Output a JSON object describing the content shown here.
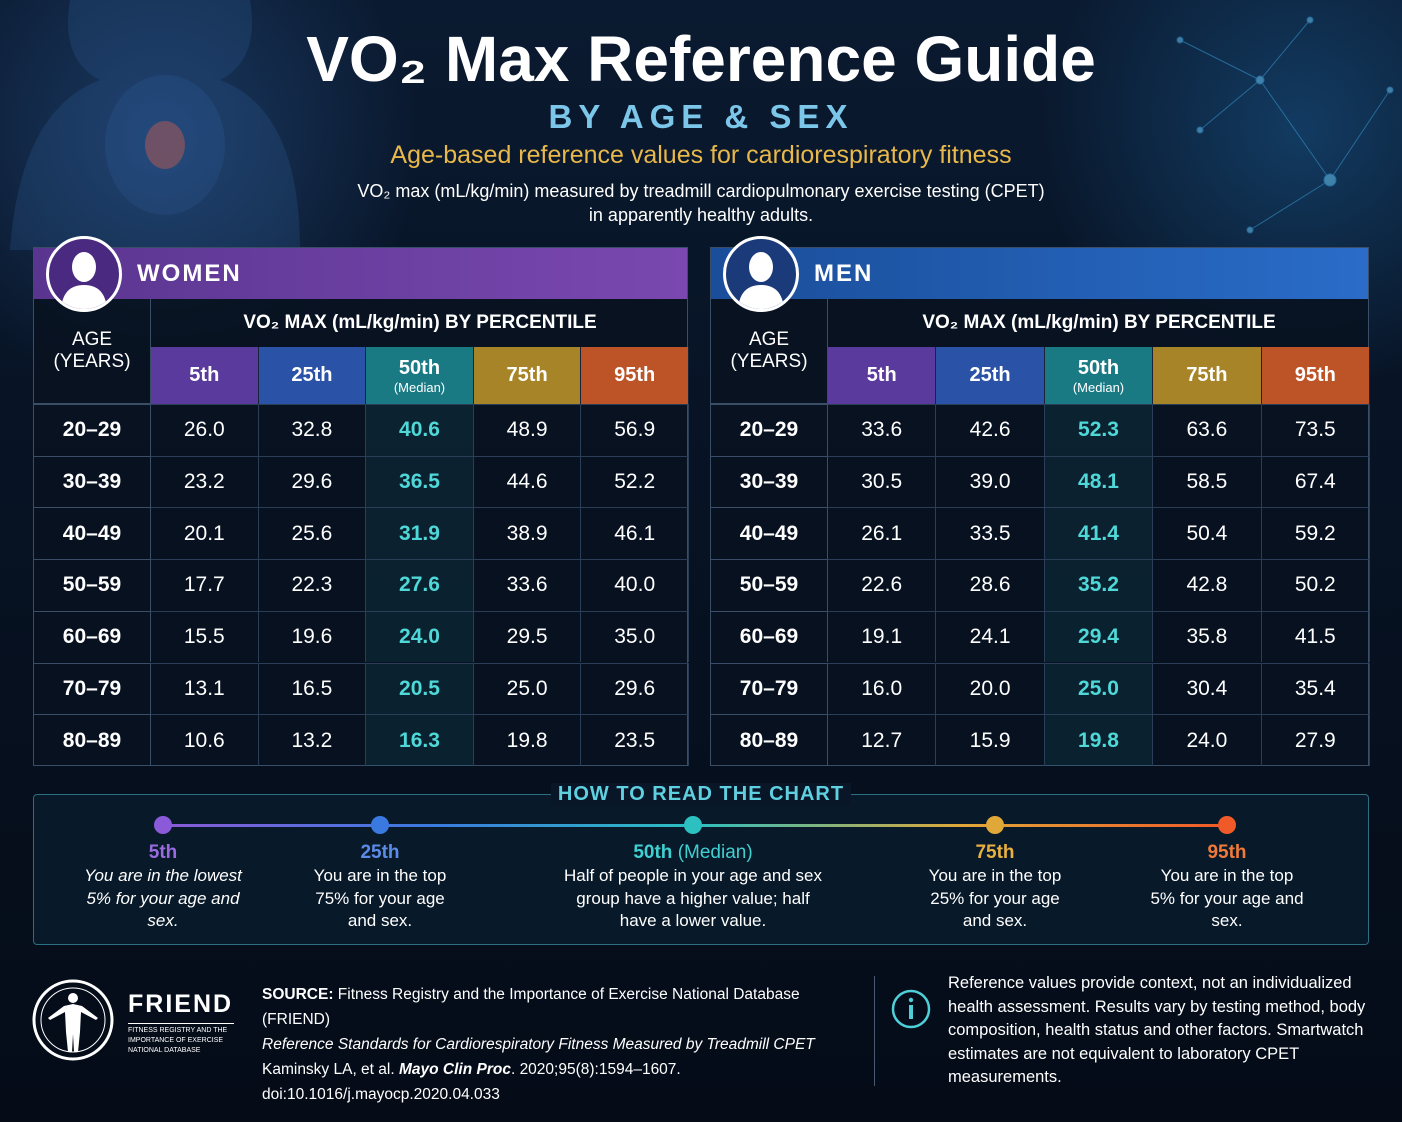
{
  "header": {
    "title": "VO₂ Max Reference Guide",
    "subtitle": "BY AGE & SEX",
    "tagline": "Age-based reference values for cardiorespiratory fitness",
    "description": [
      "VO₂ max (mL/kg/min) measured by treadmill cardiopulmonary exercise testing (CPET)",
      "in apparently healthy adults."
    ]
  },
  "tables": [
    {
      "title": "WOMEN",
      "age_header": [
        "AGE",
        "(YEARS)"
      ],
      "percentile_header": "VO₂ MAX (mL/kg/min) BY PERCENTILE",
      "columns": [
        {
          "label": "5th"
        },
        {
          "label": "25th"
        },
        {
          "label": "50th",
          "sublabel": "(Median)"
        },
        {
          "label": "75th"
        },
        {
          "label": "95th"
        }
      ],
      "rows": [
        {
          "age": "20–29",
          "values": [
            "26.0",
            "32.8",
            "40.6",
            "48.9",
            "56.9"
          ]
        },
        {
          "age": "30–39",
          "values": [
            "23.2",
            "29.6",
            "36.5",
            "44.6",
            "52.2"
          ]
        },
        {
          "age": "40–49",
          "values": [
            "20.1",
            "25.6",
            "31.9",
            "38.9",
            "46.1"
          ]
        },
        {
          "age": "50–59",
          "values": [
            "17.7",
            "22.3",
            "27.6",
            "33.6",
            "40.0"
          ]
        },
        {
          "age": "60–69",
          "values": [
            "15.5",
            "19.6",
            "24.0",
            "29.5",
            "35.0"
          ]
        },
        {
          "age": "70–79",
          "values": [
            "13.1",
            "16.5",
            "20.5",
            "25.0",
            "29.6"
          ]
        },
        {
          "age": "80–89",
          "values": [
            "10.6",
            "13.2",
            "16.3",
            "19.8",
            "23.5"
          ]
        }
      ]
    },
    {
      "title": "MEN",
      "age_header": [
        "AGE",
        "(YEARS)"
      ],
      "percentile_header": "VO₂ MAX (mL/kg/min) BY PERCENTILE",
      "columns": [
        {
          "label": "5th"
        },
        {
          "label": "25th"
        },
        {
          "label": "50th",
          "sublabel": "(Median)"
        },
        {
          "label": "75th"
        },
        {
          "label": "95th"
        }
      ],
      "rows": [
        {
          "age": "20–29",
          "values": [
            "33.6",
            "42.6",
            "52.3",
            "63.6",
            "73.5"
          ]
        },
        {
          "age": "30–39",
          "values": [
            "30.5",
            "39.0",
            "48.1",
            "58.5",
            "67.4"
          ]
        },
        {
          "age": "40–49",
          "values": [
            "26.1",
            "33.5",
            "41.4",
            "50.4",
            "59.2"
          ]
        },
        {
          "age": "50–59",
          "values": [
            "22.6",
            "28.6",
            "35.2",
            "42.8",
            "50.2"
          ]
        },
        {
          "age": "60–69",
          "values": [
            "19.1",
            "24.1",
            "29.4",
            "35.8",
            "41.5"
          ]
        },
        {
          "age": "70–79",
          "values": [
            "16.0",
            "20.0",
            "25.0",
            "30.4",
            "35.4"
          ]
        },
        {
          "age": "80–89",
          "values": [
            "12.7",
            "15.9",
            "19.8",
            "24.0",
            "27.9"
          ]
        }
      ]
    }
  ],
  "how_to": {
    "title": "HOW TO READ THE CHART",
    "items": [
      {
        "label": "5th",
        "text": "You are in the lowest 5% for your age and sex."
      },
      {
        "label": "25th",
        "text": "You are in the top 75% for your age and sex."
      },
      {
        "label": "50th",
        "sublabel": "(Median)",
        "text": "Half of people in your age and sex group have a higher value; half have a lower value."
      },
      {
        "label": "75th",
        "text": "You are in the top 25% for your age and sex."
      },
      {
        "label": "95th",
        "text": "You are in the top 5% for your age and sex."
      }
    ]
  },
  "footer": {
    "logo_name": "FRIEND",
    "logo_text": "FITNESS REGISTRY AND THE IMPORTANCE OF EXERCISE NATIONAL DATABASE",
    "source_label": "SOURCE:",
    "source_text": "Fitness Registry and the Importance of Exercise National Database (FRIEND)",
    "citation_title": "Reference Standards for Cardiorespiratory Fitness Measured by Treadmill CPET",
    "citation_authors": "Kaminsky LA, et al.",
    "citation_journal": "Mayo Clin Proc",
    "citation_details": ". 2020;95(8):1594–1607.",
    "doi": "doi:10.1016/j.mayocp.2020.04.033",
    "note": "Reference values provide context, not an individualized health assessment. Results vary by testing method, body composition, health status and other factors. Smartwatch estimates are not equivalent to laboratory CPET measurements."
  }
}
